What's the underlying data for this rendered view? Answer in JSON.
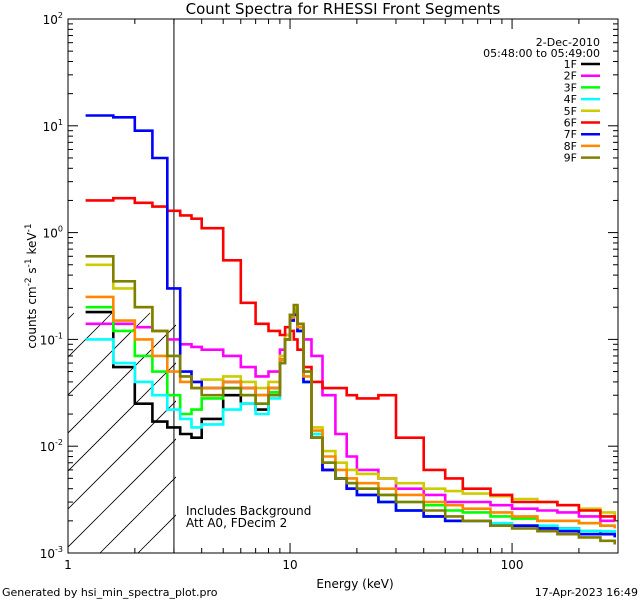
{
  "chart_data": {
    "type": "line",
    "title": "Count Spectra for RHESSI Front Segments",
    "xlabel": "Energy (keV)",
    "ylabel": "counts cm^-2 s^-1 keV^-1",
    "xscale": "log",
    "yscale": "log",
    "xlim": [
      1,
      300
    ],
    "ylim": [
      0.001,
      100
    ],
    "x_ticks": [
      {
        "value": 1,
        "label": "1"
      },
      {
        "value": 10,
        "label": "10"
      },
      {
        "value": 100,
        "label": "100"
      }
    ],
    "y_ticks": [
      {
        "value": 0.001,
        "base": "10",
        "exp": "-3"
      },
      {
        "value": 0.01,
        "base": "10",
        "exp": "-2"
      },
      {
        "value": 0.1,
        "base": "10",
        "exp": "-1"
      },
      {
        "value": 1,
        "base": "10",
        "exp": "0"
      },
      {
        "value": 10,
        "base": "10",
        "exp": "1"
      },
      {
        "value": 100,
        "base": "10",
        "exp": "2"
      }
    ],
    "hatched_region": {
      "x_from": 1,
      "x_to": 3
    },
    "legend_header": [
      "2-Dec-2010",
      "05:48:00 to 05:49:00"
    ],
    "annotations": [
      "Includes Background",
      "Att A0, FDecim 2"
    ],
    "series": [
      {
        "name": "1F",
        "color": "#000000",
        "x": [
          1.2,
          1.6,
          2.0,
          2.4,
          2.8,
          3.2,
          3.6,
          4.0,
          5.0,
          6.0,
          7.0,
          8.0,
          9.0,
          9.5,
          10.0,
          10.4,
          10.8,
          11.5,
          12.5,
          14.0,
          16.0,
          18.0,
          20.0,
          25.0,
          30.0,
          40.0,
          50.0,
          60.0,
          80.0,
          100.0,
          130.0,
          160.0,
          200.0,
          250.0,
          290.0
        ],
        "y": [
          0.18,
          0.055,
          0.025,
          0.017,
          0.015,
          0.013,
          0.012,
          0.018,
          0.03,
          0.025,
          0.022,
          0.03,
          0.06,
          0.1,
          0.17,
          0.19,
          0.12,
          0.04,
          0.012,
          0.006,
          0.005,
          0.004,
          0.0035,
          0.003,
          0.0025,
          0.0022,
          0.002,
          0.002,
          0.0018,
          0.0018,
          0.0017,
          0.0017,
          0.0016,
          0.0015,
          0.0015
        ]
      },
      {
        "name": "2F",
        "color": "#ff00ff",
        "x": [
          1.2,
          1.6,
          2.0,
          2.4,
          2.8,
          3.2,
          3.6,
          4.0,
          5.0,
          6.0,
          7.0,
          8.0,
          9.0,
          9.5,
          10.0,
          10.4,
          10.8,
          11.5,
          12.5,
          14.0,
          16.0,
          18.0,
          20.0,
          25.0,
          30.0,
          40.0,
          50.0,
          60.0,
          80.0,
          100.0,
          130.0,
          160.0,
          200.0,
          250.0,
          290.0
        ],
        "y": [
          0.14,
          0.14,
          0.13,
          0.12,
          0.1,
          0.09,
          0.085,
          0.08,
          0.07,
          0.055,
          0.045,
          0.05,
          0.08,
          0.11,
          0.16,
          0.17,
          0.13,
          0.1,
          0.07,
          0.03,
          0.013,
          0.008,
          0.006,
          0.005,
          0.004,
          0.0035,
          0.003,
          0.003,
          0.0028,
          0.0026,
          0.0025,
          0.0024,
          0.0022,
          0.002,
          0.002
        ]
      },
      {
        "name": "3F",
        "color": "#00ff00",
        "x": [
          1.2,
          1.6,
          2.0,
          2.4,
          2.8,
          3.2,
          3.6,
          4.0,
          5.0,
          6.0,
          7.0,
          8.0,
          9.0,
          9.5,
          10.0,
          10.4,
          10.8,
          11.5,
          12.5,
          14.0,
          16.0,
          18.0,
          20.0,
          25.0,
          30.0,
          40.0,
          50.0,
          60.0,
          80.0,
          100.0,
          130.0,
          160.0,
          200.0,
          250.0,
          290.0
        ],
        "y": [
          0.2,
          0.12,
          0.07,
          0.05,
          0.03,
          0.02,
          0.022,
          0.028,
          0.035,
          0.03,
          0.025,
          0.032,
          0.065,
          0.1,
          0.16,
          0.18,
          0.12,
          0.04,
          0.013,
          0.007,
          0.005,
          0.0045,
          0.004,
          0.0035,
          0.003,
          0.0028,
          0.0025,
          0.0024,
          0.0022,
          0.0021,
          0.002,
          0.002,
          0.0019,
          0.0018,
          0.0018
        ]
      },
      {
        "name": "4F",
        "color": "#00ffff",
        "x": [
          1.2,
          1.6,
          2.0,
          2.4,
          2.8,
          3.2,
          3.6,
          4.0,
          5.0,
          6.0,
          7.0,
          8.0,
          9.0,
          9.5,
          10.0,
          10.4,
          10.8,
          11.5,
          12.5,
          14.0,
          16.0,
          18.0,
          20.0,
          25.0,
          30.0,
          40.0,
          50.0,
          60.0,
          80.0,
          100.0,
          130.0,
          160.0,
          200.0,
          250.0,
          290.0
        ],
        "y": [
          0.1,
          0.06,
          0.04,
          0.03,
          0.022,
          0.018,
          0.015,
          0.016,
          0.022,
          0.025,
          0.02,
          0.028,
          0.06,
          0.1,
          0.16,
          0.2,
          0.13,
          0.04,
          0.013,
          0.007,
          0.005,
          0.004,
          0.0035,
          0.003,
          0.0025,
          0.0022,
          0.002,
          0.002,
          0.0019,
          0.0018,
          0.0018,
          0.0017,
          0.0016,
          0.0016,
          0.0015
        ]
      },
      {
        "name": "5F",
        "color": "#cccc00",
        "x": [
          1.2,
          1.6,
          2.0,
          2.4,
          2.8,
          3.2,
          3.6,
          4.0,
          5.0,
          6.0,
          7.0,
          8.0,
          9.0,
          9.5,
          10.0,
          10.4,
          10.8,
          11.5,
          12.5,
          14.0,
          16.0,
          18.0,
          20.0,
          25.0,
          30.0,
          40.0,
          50.0,
          60.0,
          80.0,
          100.0,
          130.0,
          160.0,
          200.0,
          250.0,
          290.0
        ],
        "y": [
          0.5,
          0.3,
          0.2,
          0.12,
          0.07,
          0.045,
          0.04,
          0.042,
          0.045,
          0.04,
          0.035,
          0.04,
          0.07,
          0.11,
          0.17,
          0.2,
          0.14,
          0.05,
          0.015,
          0.009,
          0.007,
          0.006,
          0.0055,
          0.005,
          0.0045,
          0.004,
          0.0038,
          0.0036,
          0.0034,
          0.0032,
          0.003,
          0.0028,
          0.0026,
          0.0024,
          0.0022
        ]
      },
      {
        "name": "6F",
        "color": "#ff0000",
        "x": [
          1.2,
          1.6,
          2.0,
          2.4,
          2.8,
          3.2,
          3.6,
          4.0,
          5.0,
          6.0,
          7.0,
          8.0,
          9.0,
          9.5,
          10.0,
          10.4,
          10.8,
          11.5,
          12.5,
          14.0,
          16.0,
          18.0,
          20.0,
          25.0,
          30.0,
          40.0,
          50.0,
          60.0,
          80.0,
          100.0,
          130.0,
          160.0,
          200.0,
          250.0,
          290.0
        ],
        "y": [
          2.0,
          2.1,
          1.9,
          1.75,
          1.6,
          1.45,
          1.35,
          1.1,
          0.55,
          0.22,
          0.14,
          0.12,
          0.11,
          0.13,
          0.12,
          0.1,
          0.08,
          0.055,
          0.04,
          0.035,
          0.035,
          0.03,
          0.028,
          0.03,
          0.012,
          0.006,
          0.005,
          0.004,
          0.0035,
          0.003,
          0.003,
          0.0028,
          0.0025,
          0.0022,
          0.002
        ]
      },
      {
        "name": "7F",
        "color": "#0000ff",
        "x": [
          1.2,
          1.6,
          2.0,
          2.4,
          2.8,
          3.2,
          3.6,
          4.0,
          5.0,
          6.0,
          7.0,
          8.0,
          9.0,
          9.5,
          10.0,
          10.4,
          10.8,
          11.5,
          12.5,
          14.0,
          16.0,
          18.0,
          20.0,
          25.0,
          30.0,
          40.0,
          50.0,
          60.0,
          80.0,
          100.0,
          130.0,
          160.0,
          200.0,
          250.0,
          290.0
        ],
        "y": [
          12.5,
          12.0,
          9.0,
          5.0,
          0.3,
          0.05,
          0.04,
          0.035,
          0.04,
          0.035,
          0.03,
          0.035,
          0.065,
          0.1,
          0.15,
          0.17,
          0.12,
          0.04,
          0.012,
          0.006,
          0.005,
          0.004,
          0.0035,
          0.003,
          0.0025,
          0.0022,
          0.002,
          0.002,
          0.0018,
          0.0018,
          0.0017,
          0.0016,
          0.0015,
          0.0015,
          0.0014
        ]
      },
      {
        "name": "8F",
        "color": "#ff8800",
        "x": [
          1.2,
          1.6,
          2.0,
          2.4,
          2.8,
          3.2,
          3.6,
          4.0,
          5.0,
          6.0,
          7.0,
          8.0,
          9.0,
          9.5,
          10.0,
          10.4,
          10.8,
          11.5,
          12.5,
          14.0,
          16.0,
          18.0,
          20.0,
          25.0,
          30.0,
          40.0,
          50.0,
          60.0,
          80.0,
          100.0,
          130.0,
          160.0,
          200.0,
          250.0,
          290.0
        ],
        "y": [
          0.25,
          0.15,
          0.1,
          0.07,
          0.05,
          0.04,
          0.035,
          0.035,
          0.04,
          0.035,
          0.03,
          0.035,
          0.065,
          0.1,
          0.16,
          0.19,
          0.13,
          0.045,
          0.014,
          0.008,
          0.006,
          0.005,
          0.0045,
          0.004,
          0.0035,
          0.003,
          0.0028,
          0.0026,
          0.0024,
          0.0022,
          0.002,
          0.002,
          0.0019,
          0.0018,
          0.0017
        ]
      },
      {
        "name": "9F",
        "color": "#808000",
        "x": [
          1.2,
          1.6,
          2.0,
          2.4,
          2.8,
          3.2,
          3.6,
          4.0,
          5.0,
          6.0,
          7.0,
          8.0,
          9.0,
          9.5,
          10.0,
          10.4,
          10.8,
          11.5,
          12.5,
          14.0,
          16.0,
          18.0,
          20.0,
          25.0,
          30.0,
          40.0,
          50.0,
          60.0,
          80.0,
          100.0,
          130.0,
          160.0,
          200.0,
          250.0,
          290.0
        ],
        "y": [
          0.6,
          0.35,
          0.2,
          0.12,
          0.07,
          0.045,
          0.035,
          0.03,
          0.035,
          0.03,
          0.025,
          0.03,
          0.06,
          0.1,
          0.17,
          0.21,
          0.14,
          0.05,
          0.012,
          0.007,
          0.005,
          0.0045,
          0.004,
          0.0035,
          0.003,
          0.0025,
          0.0022,
          0.002,
          0.0018,
          0.0017,
          0.0016,
          0.0015,
          0.0014,
          0.0013,
          0.0012
        ]
      }
    ]
  },
  "footer": {
    "left": "Generated by hsi_min_spectra_plot.pro",
    "right": "17-Apr-2023 16:49"
  }
}
